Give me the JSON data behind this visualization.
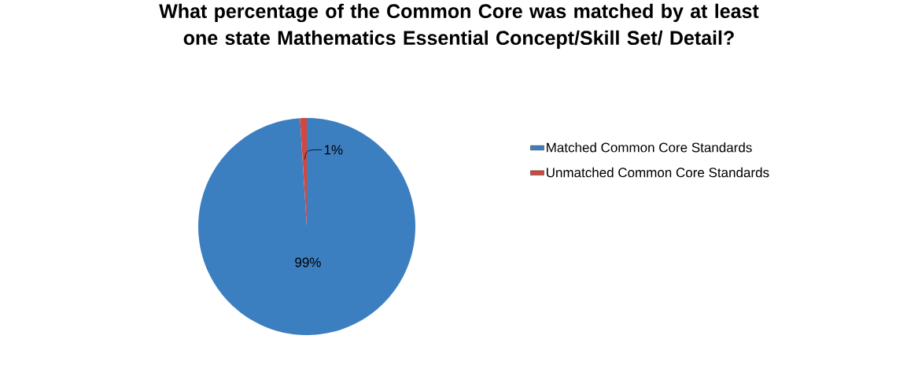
{
  "chart_data": {
    "type": "pie",
    "title": "What percentage of the Common Core was matched by at least one state Mathematics Essential Concept/Skill Set/ Detail?",
    "categories": [
      "Matched Common Core Standards",
      "Unmatched Common Core Standards"
    ],
    "values": [
      99,
      1
    ],
    "colors": [
      "#3c7fc0",
      "#d24840"
    ],
    "value_labels": [
      "99%",
      "1%"
    ],
    "legend": "right"
  }
}
